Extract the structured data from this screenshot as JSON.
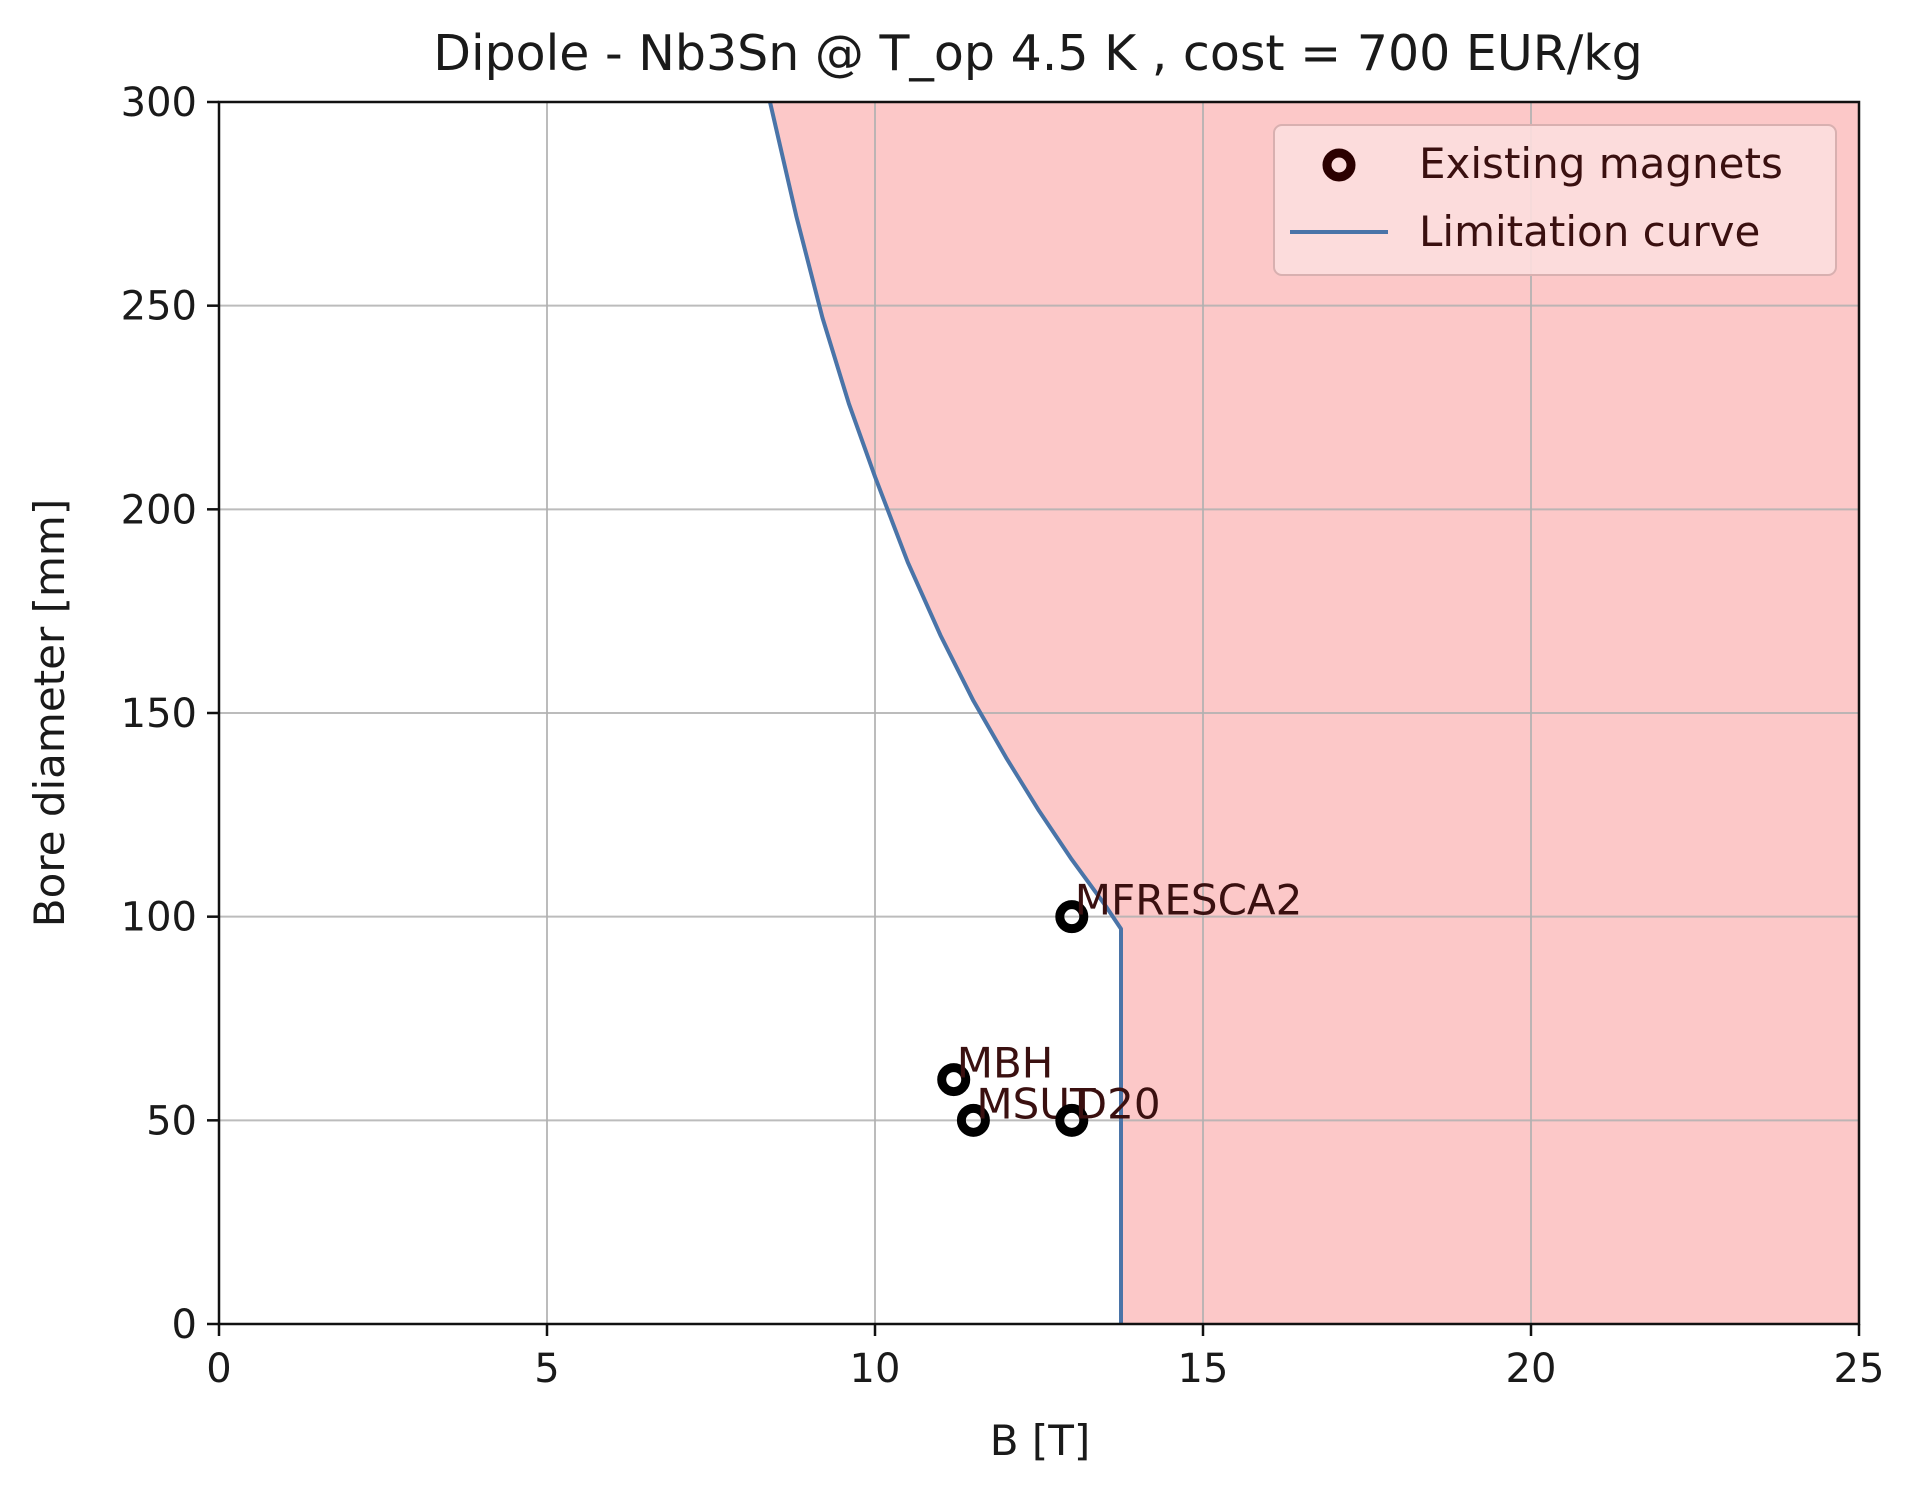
{
  "chart_data": {
    "type": "scatter",
    "title": "Dipole - Nb3Sn @ T_op 4.5 K , cost = 700 EUR/kg",
    "xlabel": "B [T]",
    "ylabel": "Bore diameter [mm]",
    "xlim": [
      0,
      25
    ],
    "ylim": [
      0,
      300
    ],
    "xticks": [
      "0",
      "5",
      "10",
      "15",
      "20",
      "25"
    ],
    "yticks": [
      "0",
      "50",
      "100",
      "150",
      "200",
      "250",
      "300"
    ],
    "grid": true,
    "legend_position": "top-right",
    "colors": {
      "limit_line": "#4a74a8",
      "fill": "#fcc8c8",
      "marker": "#000000",
      "grid": "#b0b0b0"
    },
    "series": [
      {
        "name": "Existing magnets",
        "kind": "scatter",
        "points": [
          {
            "label": "MFRESCA2",
            "x": 13.0,
            "y": 100
          },
          {
            "label": "MBH",
            "x": 11.2,
            "y": 60
          },
          {
            "label": "MSUT",
            "x": 11.5,
            "y": 50
          },
          {
            "label": "D20",
            "x": 13.0,
            "y": 50
          }
        ]
      },
      {
        "name": "Limitation curve",
        "kind": "line",
        "x": [
          8.4,
          8.8,
          9.2,
          9.6,
          10.0,
          10.5,
          11.0,
          11.5,
          12.0,
          12.5,
          13.0,
          13.5,
          13.75,
          13.75
        ],
        "y": [
          300,
          272,
          247,
          226,
          208,
          187,
          169,
          153,
          139,
          126,
          114,
          103,
          97,
          0
        ]
      }
    ],
    "shaded_region": "feasible area right of the limitation curve"
  }
}
